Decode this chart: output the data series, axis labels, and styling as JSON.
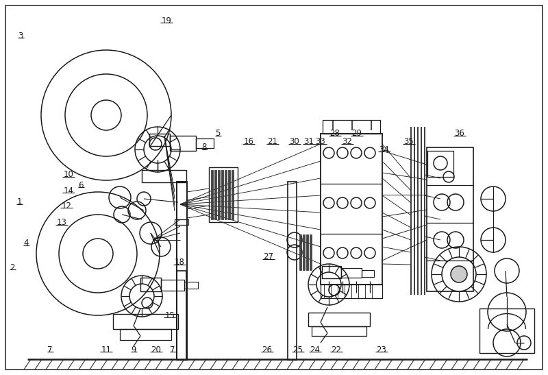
{
  "bg": "#ffffff",
  "lc": "#1a1a1a",
  "lw": 1.1,
  "figsize": [
    8.0,
    5.47
  ],
  "dpi": 100,
  "labels": [
    [
      "1",
      28,
      295
    ],
    [
      "2",
      18,
      390
    ],
    [
      "3",
      30,
      52
    ],
    [
      "4",
      38,
      355
    ],
    [
      "5",
      318,
      195
    ],
    [
      "6",
      118,
      270
    ],
    [
      "7",
      252,
      510
    ],
    [
      "7",
      73,
      510
    ],
    [
      "8",
      298,
      215
    ],
    [
      "9",
      195,
      510
    ],
    [
      "10",
      100,
      255
    ],
    [
      "11",
      155,
      510
    ],
    [
      "12",
      97,
      300
    ],
    [
      "13",
      90,
      325
    ],
    [
      "14",
      100,
      278
    ],
    [
      "15",
      248,
      460
    ],
    [
      "16",
      363,
      207
    ],
    [
      "18",
      262,
      383
    ],
    [
      "19",
      243,
      30
    ],
    [
      "20",
      228,
      510
    ],
    [
      "21",
      398,
      207
    ],
    [
      "22",
      491,
      510
    ],
    [
      "23",
      557,
      510
    ],
    [
      "24",
      460,
      510
    ],
    [
      "25",
      435,
      510
    ],
    [
      "26",
      390,
      510
    ],
    [
      "27",
      392,
      375
    ],
    [
      "28",
      489,
      195
    ],
    [
      "29",
      521,
      195
    ],
    [
      "30",
      430,
      207
    ],
    [
      "31",
      451,
      207
    ],
    [
      "32",
      507,
      207
    ],
    [
      "33",
      468,
      207
    ],
    [
      "34",
      561,
      218
    ],
    [
      "35",
      597,
      207
    ],
    [
      "36",
      671,
      195
    ]
  ]
}
